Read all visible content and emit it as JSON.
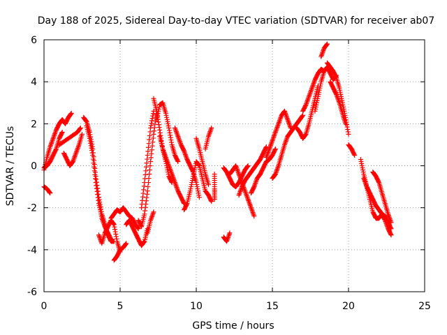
{
  "chart_data": {
    "type": "scatter",
    "title": "Day 188 of 2025, Sidereal Day-to-day VTEC variation (SDTVAR) for receiver ab07",
    "xlabel": "GPS time / hours",
    "ylabel": "SDTVAR / TECUs",
    "xlim": [
      0,
      25
    ],
    "ylim": [
      -6,
      6
    ],
    "x_ticks": [
      "0",
      "5",
      "10",
      "15",
      "20",
      "25"
    ],
    "y_ticks": [
      "-6",
      "-4",
      "-2",
      "0",
      "2",
      "4",
      "6"
    ],
    "grid": true,
    "marker": "plus",
    "color": "#ff0000",
    "series": [
      {
        "name": "t0",
        "x": [
          0.0,
          0.2,
          0.4,
          0.6,
          0.8,
          1.0,
          1.2,
          1.4,
          1.6,
          1.8
        ],
        "y": [
          -0.2,
          0.4,
          0.9,
          1.3,
          1.7,
          2.0,
          2.2,
          2.0,
          2.3,
          2.5
        ]
      },
      {
        "name": "t1",
        "x": [
          0.0,
          0.2,
          0.4,
          0.6,
          0.8,
          1.0,
          1.2
        ],
        "y": [
          -0.1,
          0.0,
          0.2,
          0.5,
          0.8,
          1.3,
          1.6
        ]
      },
      {
        "name": "t2",
        "x": [
          0.0,
          0.2,
          0.4
        ],
        "y": [
          -1.0,
          -1.1,
          -1.3
        ]
      },
      {
        "name": "t3",
        "x": [
          1.3,
          1.5,
          1.7,
          1.9,
          2.1,
          2.3,
          2.5
        ],
        "y": [
          0.6,
          0.3,
          0.0,
          0.2,
          0.6,
          1.0,
          1.5
        ]
      },
      {
        "name": "t4",
        "x": [
          1.0,
          1.4,
          1.8,
          2.2,
          2.4
        ],
        "y": [
          1.0,
          1.2,
          1.4,
          1.6,
          1.8
        ]
      },
      {
        "name": "t5",
        "x": [
          2.6,
          2.8,
          3.0,
          3.2,
          3.4,
          3.6,
          3.8,
          4.0,
          4.2,
          4.4,
          4.6
        ],
        "y": [
          2.3,
          2.1,
          1.6,
          0.8,
          -0.5,
          -1.5,
          -2.3,
          -2.8,
          -3.3,
          -3.6,
          -3.6
        ]
      },
      {
        "name": "t6",
        "x": [
          2.8,
          3.0,
          3.2,
          3.4,
          3.6,
          3.8,
          4.0,
          4.2,
          4.4
        ],
        "y": [
          1.9,
          1.3,
          0.5,
          -0.8,
          -1.8,
          -2.5,
          -2.9,
          -3.2,
          -3.5
        ]
      },
      {
        "name": "t7",
        "x": [
          3.6,
          3.8,
          4.0,
          4.2,
          4.4,
          4.6,
          4.8,
          5.0
        ],
        "y": [
          -3.3,
          -3.7,
          -3.2,
          -2.9,
          -2.6,
          -2.8,
          -3.6,
          -4.1
        ]
      },
      {
        "name": "t8",
        "x": [
          4.6,
          4.8,
          5.0,
          5.2,
          5.4
        ],
        "y": [
          -4.5,
          -4.3,
          -4.0,
          -3.9,
          -3.7
        ]
      },
      {
        "name": "t9",
        "x": [
          4.4,
          4.6,
          4.8,
          5.0,
          5.2,
          5.4,
          5.6,
          5.8,
          6.0,
          6.2
        ],
        "y": [
          -2.5,
          -2.3,
          -2.1,
          -2.2,
          -2.0,
          -2.2,
          -2.4,
          -2.5,
          -2.8,
          -3.0
        ]
      },
      {
        "name": "t10",
        "x": [
          5.4,
          5.6,
          5.8,
          6.0,
          6.2,
          6.4,
          6.6,
          6.8
        ],
        "y": [
          -2.8,
          -2.6,
          -2.9,
          -3.2,
          -3.5,
          -3.8,
          -3.6,
          -3.0
        ]
      },
      {
        "name": "t11",
        "x": [
          6.2,
          6.4,
          6.6,
          6.8,
          7.0,
          7.2,
          7.4
        ],
        "y": [
          -2.6,
          -2.9,
          -2.3,
          -1.2,
          0.2,
          1.5,
          2.6
        ]
      },
      {
        "name": "t12",
        "x": [
          6.4,
          6.6,
          6.8,
          7.0,
          7.2
        ],
        "y": [
          -2.0,
          -0.8,
          0.5,
          1.8,
          2.6
        ]
      },
      {
        "name": "t13",
        "x": [
          6.8,
          7.0,
          7.2
        ],
        "y": [
          -3.2,
          -2.6,
          -2.2
        ]
      },
      {
        "name": "t14",
        "x": [
          7.2,
          7.4,
          7.6,
          7.8,
          8.0,
          8.2,
          8.4
        ],
        "y": [
          3.2,
          2.6,
          1.7,
          0.8,
          0.2,
          -0.5,
          -0.8
        ]
      },
      {
        "name": "t15",
        "x": [
          7.4,
          7.6,
          7.8,
          8.0,
          8.2,
          8.4,
          8.6,
          8.8
        ],
        "y": [
          2.2,
          2.9,
          3.0,
          2.5,
          1.8,
          1.0,
          0.5,
          0.2
        ]
      },
      {
        "name": "t16",
        "x": [
          7.6,
          7.8,
          8.0,
          8.2,
          8.4,
          8.6,
          8.8,
          9.0,
          9.2
        ],
        "y": [
          1.4,
          0.8,
          0.4,
          0.0,
          -0.4,
          -0.8,
          -1.2,
          -1.5,
          -1.8
        ]
      },
      {
        "name": "t17",
        "x": [
          8.6,
          8.8,
          9.0,
          9.2,
          9.4,
          9.6,
          9.8,
          10.0,
          10.2
        ],
        "y": [
          1.8,
          1.4,
          1.0,
          0.7,
          0.3,
          0.0,
          -0.3,
          -0.8,
          -1.5
        ]
      },
      {
        "name": "t18",
        "x": [
          9.2,
          9.4,
          9.6,
          9.8,
          10.0,
          10.2,
          10.4,
          10.6,
          10.8,
          11.0
        ],
        "y": [
          -2.1,
          -1.8,
          -1.2,
          -0.5,
          0.2,
          0.0,
          -0.6,
          -1.2,
          -1.4,
          -1.7
        ]
      },
      {
        "name": "t19",
        "x": [
          10.0,
          10.2,
          10.4,
          10.6,
          10.8
        ],
        "y": [
          1.3,
          0.8,
          0.2,
          -0.4,
          -0.9
        ]
      },
      {
        "name": "t20",
        "x": [
          10.6,
          10.8,
          11.0
        ],
        "y": [
          0.8,
          1.4,
          1.8
        ]
      },
      {
        "name": "t21",
        "x": [
          11.2,
          11.2,
          11.2
        ],
        "y": [
          -0.4,
          -1.1,
          -1.6
        ]
      },
      {
        "name": "t22",
        "x": [
          11.8,
          12.0,
          12.2
        ],
        "y": [
          -3.4,
          -3.6,
          -3.2
        ]
      },
      {
        "name": "t23",
        "x": [
          11.8,
          12.0,
          12.2,
          12.4,
          12.6,
          12.8,
          13.0,
          13.2,
          13.4
        ],
        "y": [
          -0.1,
          -0.3,
          -0.6,
          -0.9,
          -1.0,
          -0.8,
          -0.5,
          -0.2,
          0.0
        ]
      },
      {
        "name": "t24",
        "x": [
          12.2,
          12.4,
          12.6,
          12.8,
          13.0,
          13.2,
          13.4,
          13.6,
          13.8
        ],
        "y": [
          -0.4,
          -0.2,
          0.0,
          -0.4,
          -0.8,
          -1.2,
          -1.6,
          -2.0,
          -2.4
        ]
      },
      {
        "name": "t25",
        "x": [
          12.8,
          13.0,
          13.2,
          13.4,
          13.6,
          13.8,
          14.0,
          14.2,
          14.4,
          14.6
        ],
        "y": [
          -1.4,
          -1.0,
          -0.7,
          -0.5,
          -0.3,
          -0.1,
          0.1,
          0.3,
          0.6,
          0.9
        ]
      },
      {
        "name": "t26",
        "x": [
          13.6,
          13.8,
          14.0,
          14.2,
          14.4,
          14.6,
          14.8,
          15.0,
          15.2
        ],
        "y": [
          -1.3,
          -1.0,
          -0.6,
          -0.4,
          -0.1,
          0.2,
          0.3,
          0.5,
          0.8
        ]
      },
      {
        "name": "t27",
        "x": [
          14.6,
          14.8,
          15.0,
          15.2,
          15.4,
          15.6,
          15.8,
          16.0,
          16.2
        ],
        "y": [
          0.4,
          0.8,
          1.2,
          1.6,
          2.0,
          2.4,
          2.6,
          2.2,
          1.8
        ]
      },
      {
        "name": "t28",
        "x": [
          15.0,
          15.2,
          15.4,
          15.6,
          15.8,
          16.0,
          16.2,
          16.4,
          16.6,
          16.8,
          17.0
        ],
        "y": [
          -0.6,
          -0.4,
          0.0,
          0.5,
          1.0,
          1.4,
          1.6,
          1.8,
          2.0,
          2.2,
          2.4
        ]
      },
      {
        "name": "t29",
        "x": [
          16.6,
          16.8,
          17.0,
          17.2,
          17.4,
          17.6,
          17.8,
          18.0
        ],
        "y": [
          1.8,
          1.6,
          1.3,
          1.5,
          2.0,
          2.6,
          3.2,
          3.8
        ]
      },
      {
        "name": "t30",
        "x": [
          17.0,
          17.2,
          17.4,
          17.6,
          17.8,
          18.0,
          18.2,
          18.4
        ],
        "y": [
          2.6,
          2.9,
          3.3,
          3.7,
          4.1,
          4.4,
          4.6,
          4.5
        ]
      },
      {
        "name": "t31",
        "x": [
          17.8,
          18.0,
          18.2,
          18.4,
          18.6,
          18.8,
          19.0,
          19.2
        ],
        "y": [
          2.6,
          3.3,
          4.0,
          4.5,
          4.7,
          4.4,
          4.1,
          4.3
        ]
      },
      {
        "name": "t32",
        "x": [
          18.2,
          18.4,
          18.6
        ],
        "y": [
          5.2,
          5.6,
          5.8
        ]
      },
      {
        "name": "t33",
        "x": [
          18.6,
          18.8,
          19.0,
          19.2,
          19.4,
          19.6,
          19.8,
          20.0
        ],
        "y": [
          4.9,
          4.7,
          4.5,
          4.2,
          3.7,
          3.0,
          2.3,
          1.5
        ]
      },
      {
        "name": "t34",
        "x": [
          18.8,
          19.0,
          19.2,
          19.4,
          19.6,
          19.8
        ],
        "y": [
          4.0,
          3.7,
          3.4,
          3.0,
          2.5,
          2.0
        ]
      },
      {
        "name": "t35",
        "x": [
          20.0,
          20.2,
          20.4
        ],
        "y": [
          1.0,
          0.8,
          0.5
        ]
      },
      {
        "name": "t36",
        "x": [
          20.8,
          21.0,
          21.2,
          21.4,
          21.6,
          21.8,
          22.0,
          22.2,
          22.4,
          22.6,
          22.8
        ],
        "y": [
          0.3,
          -0.4,
          -1.0,
          -1.6,
          -2.2,
          -2.5,
          -2.5,
          -2.3,
          -2.4,
          -2.7,
          -3.0
        ]
      },
      {
        "name": "t37",
        "x": [
          21.0,
          21.2,
          21.4,
          21.6,
          21.8,
          22.0,
          22.2,
          22.4,
          22.6,
          22.8
        ],
        "y": [
          -0.6,
          -1.0,
          -1.3,
          -1.6,
          -1.9,
          -2.1,
          -2.3,
          -2.6,
          -3.0,
          -3.3
        ]
      },
      {
        "name": "t38",
        "x": [
          21.6,
          21.8,
          22.0,
          22.2,
          22.4,
          22.6,
          22.8
        ],
        "y": [
          -0.3,
          -0.5,
          -0.8,
          -1.3,
          -1.8,
          -2.3,
          -2.7
        ]
      }
    ]
  }
}
